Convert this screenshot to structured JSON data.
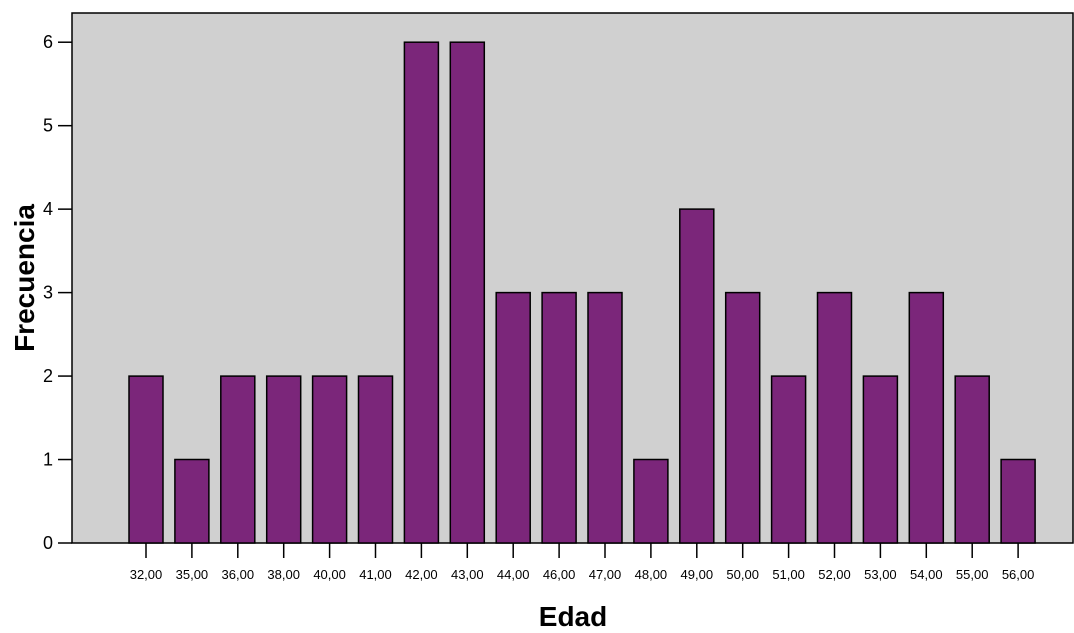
{
  "chart_data": {
    "type": "bar",
    "title": "",
    "xlabel": "Edad",
    "ylabel": "Frecuencia",
    "categories": [
      "32,00",
      "35,00",
      "36,00",
      "38,00",
      "40,00",
      "41,00",
      "42,00",
      "43,00",
      "44,00",
      "46,00",
      "47,00",
      "48,00",
      "49,00",
      "50,00",
      "51,00",
      "52,00",
      "53,00",
      "54,00",
      "55,00",
      "56,00"
    ],
    "values": [
      2,
      1,
      2,
      2,
      2,
      2,
      6,
      6,
      3,
      3,
      3,
      1,
      4,
      3,
      2,
      3,
      2,
      3,
      2,
      1
    ],
    "ylim": [
      0,
      6.35
    ],
    "yticks": [
      "0",
      "1",
      "2",
      "3",
      "4",
      "5",
      "6"
    ],
    "grid": false,
    "colors": {
      "bar": "#7b267a",
      "plot_bg": "#d0d0d0",
      "edge": "#000000"
    }
  }
}
